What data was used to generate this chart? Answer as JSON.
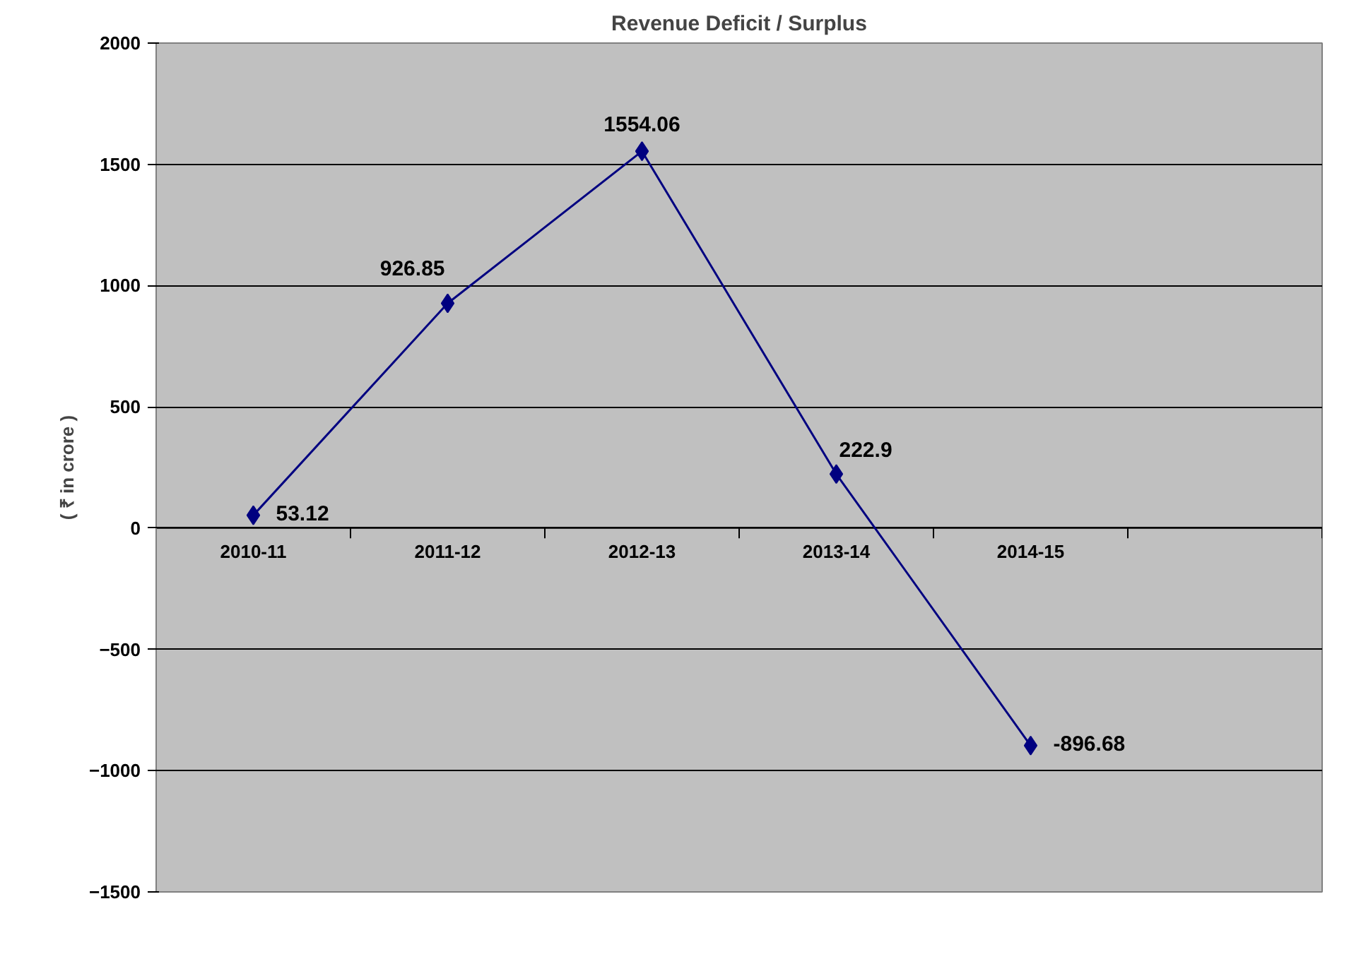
{
  "chart_data": {
    "type": "line",
    "title": "Revenue Deficit / Surplus",
    "ylabel": "( ₹ in crore )",
    "categories": [
      "2010-11",
      "2011-12",
      "2012-13",
      "2013-14",
      "2014-15",
      null
    ],
    "series": [
      {
        "color": "#000080",
        "values": [
          53.12,
          926.85,
          1554.06,
          222.9,
          -896.68,
          null
        ]
      }
    ],
    "ylim": [
      -1500,
      2000
    ],
    "yticks": [
      -1500,
      -1000,
      -500,
      0,
      500,
      1000,
      1500,
      2000
    ],
    "grid": "y",
    "marker": "diamond",
    "data_labels": true
  }
}
